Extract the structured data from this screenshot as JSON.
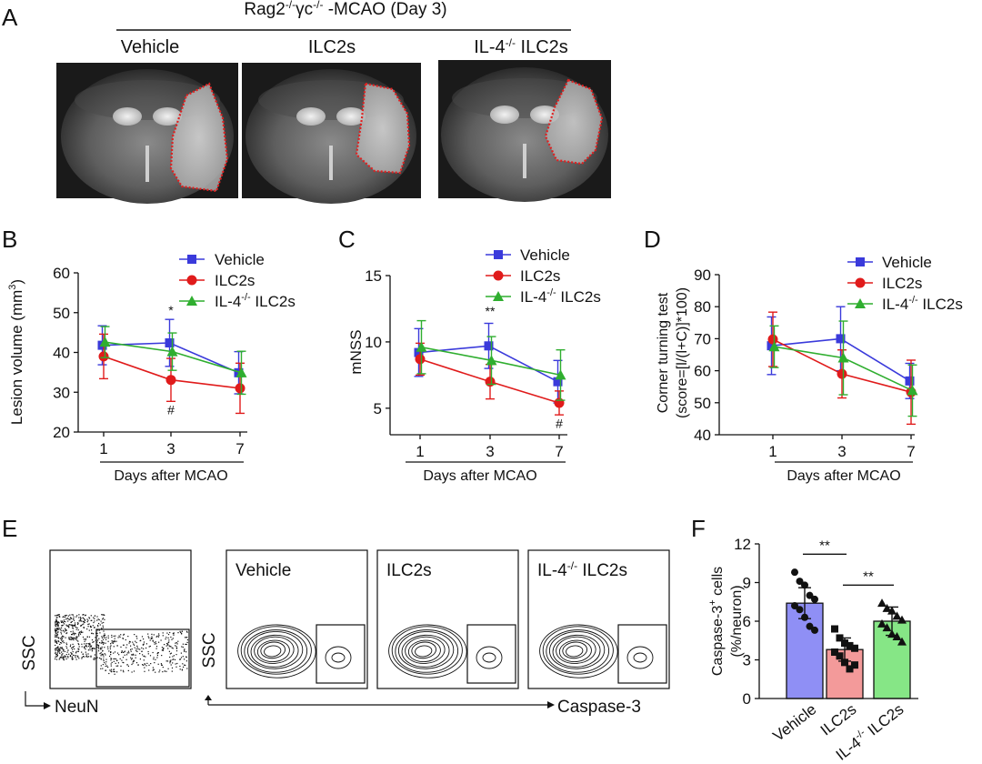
{
  "colors": {
    "vehicle": "#3a3adb",
    "ilc2s": "#e01b1b",
    "il4ko": "#2fae2f",
    "bar_vehicle": "#8f8ff5",
    "bar_ilc2s": "#f39a9a",
    "bar_il4ko": "#86e686",
    "lesion_outline": "#e02020"
  },
  "panels": {
    "A": {
      "letter": "A",
      "title_main": "Rag2",
      "title_sup1": "-/-",
      "title_gamma": "γc",
      "title_sup2": "-/-",
      "title_rest": " -MCAO (Day 3)",
      "columns": [
        {
          "main": "Vehicle",
          "sup": "",
          "rest": ""
        },
        {
          "main": "ILC2s",
          "sup": "",
          "rest": ""
        },
        {
          "main": "IL-4",
          "sup": "-/-",
          "rest": " ILC2s"
        }
      ]
    },
    "B": {
      "letter": "B"
    },
    "C": {
      "letter": "C"
    },
    "D": {
      "letter": "D"
    },
    "E": {
      "letter": "E",
      "gate_xlabel": "NeuN",
      "gate_ylabel": "SSC",
      "main_ylabel": "SSC",
      "main_xlabel": "Caspase-3",
      "plots": [
        {
          "main": "Vehicle",
          "sup": "",
          "rest": ""
        },
        {
          "main": "ILC2s",
          "sup": "",
          "rest": ""
        },
        {
          "main": "IL-4",
          "sup": "-/-",
          "rest": " ILC2s"
        }
      ]
    },
    "F": {
      "letter": "F"
    }
  },
  "legend": {
    "vehicle": "Vehicle",
    "ilc2s": "ILC2s",
    "il4_main": "IL-4",
    "il4_sup": "-/-",
    "il4_rest": " ILC2s"
  },
  "chart_data": [
    {
      "panel": "B",
      "type": "line",
      "ylabel_main": "Lesion volume (mm",
      "ylabel_sup": "3",
      "ylabel_end": ")",
      "xlabel": "Days after MCAO",
      "x": [
        "1",
        "3",
        "7"
      ],
      "yticks": [
        "20",
        "30",
        "40",
        "50",
        "60"
      ],
      "ylim": [
        20,
        60
      ],
      "series": [
        {
          "name": "Vehicle",
          "color_key": "vehicle",
          "marker": "square",
          "values": [
            41.8,
            42.4,
            34.9
          ],
          "errors": [
            4.9,
            5.9,
            5.3
          ]
        },
        {
          "name": "ILC2s",
          "color_key": "ilc2s",
          "marker": "circle",
          "values": [
            39.0,
            33.1,
            31.0
          ],
          "errors": [
            5.6,
            5.4,
            6.3
          ]
        },
        {
          "name": "IL-4-/- ILC2s",
          "color_key": "il4ko",
          "marker": "triangle",
          "values": [
            42.6,
            40.2,
            34.9
          ],
          "errors": [
            3.9,
            4.7,
            5.4
          ]
        }
      ],
      "annotations": [
        {
          "text": "*",
          "x": "3",
          "y": 49.5
        },
        {
          "text": "#",
          "x": "3",
          "y": 24.5
        }
      ]
    },
    {
      "panel": "C",
      "type": "line",
      "ylabel": "mNSS",
      "xlabel": "Days after MCAO",
      "x": [
        "1",
        "3",
        "7"
      ],
      "yticks": [
        "5",
        "10",
        "15"
      ],
      "ylim": [
        3,
        15
      ],
      "series": [
        {
          "name": "Vehicle",
          "color_key": "vehicle",
          "marker": "square",
          "values": [
            9.2,
            9.7,
            7.0
          ],
          "errors": [
            1.8,
            1.7,
            1.6
          ]
        },
        {
          "name": "ILC2s",
          "color_key": "ilc2s",
          "marker": "circle",
          "values": [
            8.7,
            7.0,
            5.4
          ],
          "errors": [
            1.2,
            1.3,
            0.9
          ]
        },
        {
          "name": "IL-4-/- ILC2s",
          "color_key": "il4ko",
          "marker": "triangle",
          "values": [
            9.6,
            8.6,
            7.5
          ],
          "errors": [
            2.0,
            1.8,
            1.9
          ]
        }
      ],
      "annotations": [
        {
          "text": "**",
          "x": "3",
          "y": 12.0
        },
        {
          "text": "#",
          "x": "7",
          "y": 3.5
        }
      ]
    },
    {
      "panel": "D",
      "type": "line",
      "ylabel_line1": "Corner turning test",
      "ylabel_line2": "(score=[l/(l+C)]*100)",
      "xlabel": "Days after MCAO",
      "x": [
        "1",
        "3",
        "7"
      ],
      "yticks": [
        "40",
        "50",
        "60",
        "70",
        "80",
        "90"
      ],
      "ylim": [
        40,
        90
      ],
      "series": [
        {
          "name": "Vehicle",
          "color_key": "vehicle",
          "marker": "square",
          "values": [
            67.8,
            70.0,
            56.8
          ],
          "errors": [
            9.0,
            10.0,
            5.5
          ]
        },
        {
          "name": "ILC2s",
          "color_key": "ilc2s",
          "marker": "circle",
          "values": [
            69.8,
            59.0,
            53.3
          ],
          "errors": [
            8.5,
            7.5,
            10.0
          ]
        },
        {
          "name": "IL-4-/- ILC2s",
          "color_key": "il4ko",
          "marker": "triangle",
          "values": [
            67.5,
            64.0,
            53.8
          ],
          "errors": [
            6.5,
            11.5,
            8.0
          ]
        }
      ]
    },
    {
      "panel": "F",
      "type": "bar",
      "ylabel_line1_main": "Caspase-3",
      "ylabel_line1_sup": "+",
      "ylabel_line1_rest": " cells",
      "ylabel_line2": "(%/neuron)",
      "categories": [
        "Vehicle",
        "ILC2s",
        "IL-4-/- ILC2s"
      ],
      "category_labels": [
        {
          "main": "Vehicle",
          "sup": "",
          "rest": ""
        },
        {
          "main": "ILC2s",
          "sup": "",
          "rest": ""
        },
        {
          "main": "IL-4",
          "sup": "-/-",
          "rest": " ILC2s"
        }
      ],
      "values": [
        7.4,
        3.8,
        6.0
      ],
      "errors": [
        1.2,
        0.9,
        1.1
      ],
      "points": [
        [
          9.8,
          9.1,
          8.8,
          8.0,
          7.7,
          7.2,
          6.9,
          6.3,
          5.6,
          5.3
        ],
        [
          5.4,
          4.7,
          4.3,
          4.1,
          3.9,
          3.6,
          3.3,
          2.8,
          2.3,
          2.6
        ],
        [
          7.4,
          7.0,
          6.8,
          6.4,
          6.1,
          5.8,
          5.5,
          5.0,
          4.8,
          4.4
        ]
      ],
      "yticks": [
        "0",
        "3",
        "6",
        "9",
        "12"
      ],
      "ylim": [
        0,
        12
      ],
      "significance": [
        {
          "from": 0,
          "to": 1,
          "text": "**",
          "y": 11.2
        },
        {
          "from": 1,
          "to": 2,
          "text": "**",
          "y": 8.8
        }
      ]
    }
  ]
}
